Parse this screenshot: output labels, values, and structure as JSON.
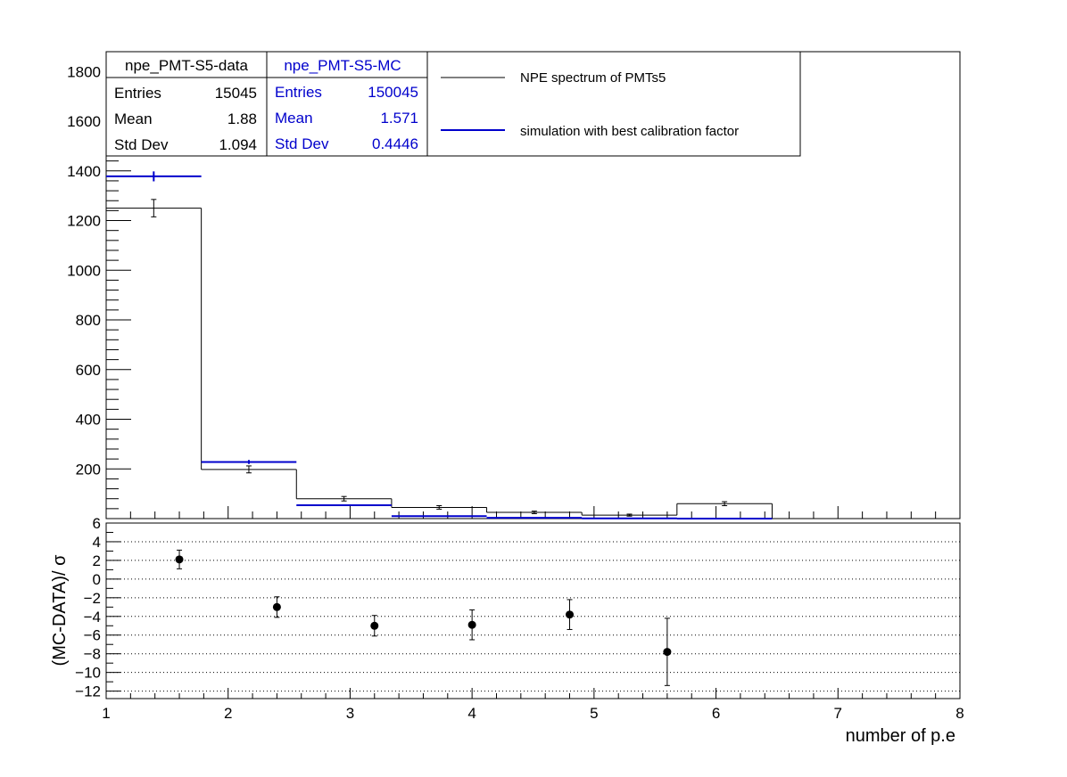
{
  "colors": {
    "data": "#000000",
    "mc": "#0000cc",
    "grid": "#000000"
  },
  "stats_data": {
    "title": "npe_PMT-S5-data",
    "rows": [
      {
        "label": "Entries",
        "value": "15045"
      },
      {
        "label": "Mean",
        "value": "1.88"
      },
      {
        "label": "Std Dev",
        "value": "1.094"
      }
    ]
  },
  "stats_mc": {
    "title": "npe_PMT-S5-MC",
    "rows": [
      {
        "label": "Entries",
        "value": "150045"
      },
      {
        "label": "Mean",
        "value": "1.571"
      },
      {
        "label": "Std Dev",
        "value": "0.4446"
      }
    ]
  },
  "legend": {
    "entries": [
      {
        "label": "NPE spectrum of PMTs5",
        "color": "#000000"
      },
      {
        "label": "simulation with best calibration factor",
        "color": "#0000cc"
      }
    ]
  },
  "chart_data": [
    {
      "type": "histogram",
      "title": "",
      "xlabel": "",
      "ylabel": "",
      "xlim": [
        1,
        8
      ],
      "ylim": [
        0,
        1880
      ],
      "yticks": [
        "200",
        "400",
        "600",
        "800",
        "1000",
        "1200",
        "1400",
        "1600",
        "1800"
      ],
      "bin_edges": [
        1.0,
        1.78,
        2.56,
        3.34,
        4.12,
        4.9,
        5.68,
        6.46
      ],
      "series": [
        {
          "name": "npe_PMT-S5-data",
          "color": "#000000",
          "values": [
            1250,
            198,
            80,
            45,
            25,
            14,
            60
          ],
          "errors": [
            35,
            14,
            9,
            7,
            5,
            4,
            8
          ],
          "marker_x": [
            1.39,
            2.17,
            2.95,
            3.73,
            4.51,
            5.29,
            6.07
          ]
        },
        {
          "name": "npe_PMT-S5-MC",
          "color": "#0000cc",
          "values": [
            1378,
            228,
            54,
            10,
            3,
            1,
            0
          ],
          "errors": [
            20,
            8,
            3,
            1,
            0.5,
            0.3,
            0
          ],
          "marker_x": [
            1.39,
            2.17,
            2.95,
            3.73,
            4.51,
            5.29,
            6.07
          ]
        }
      ]
    },
    {
      "type": "scatter",
      "title": "",
      "xlabel": "number of p.e",
      "ylabel": "(MC-DATA)/ σ",
      "xlim": [
        1,
        8
      ],
      "ylim": [
        -12.8,
        6
      ],
      "xticks": [
        "1",
        "2",
        "3",
        "4",
        "5",
        "6",
        "7",
        "8"
      ],
      "yticks": [
        "−12",
        "−10",
        "−8",
        "−6",
        "−4",
        "−2",
        "0",
        "2",
        "4",
        "6"
      ],
      "grid": "horizontal dotted",
      "series": [
        {
          "x": [
            1.6,
            2.4,
            3.2,
            4.0,
            4.8,
            5.6
          ],
          "y": [
            2.1,
            -3.0,
            -5.0,
            -4.9,
            -3.8,
            -7.8
          ],
          "err": [
            1.0,
            1.1,
            1.1,
            1.6,
            1.6,
            3.6
          ]
        }
      ]
    }
  ]
}
